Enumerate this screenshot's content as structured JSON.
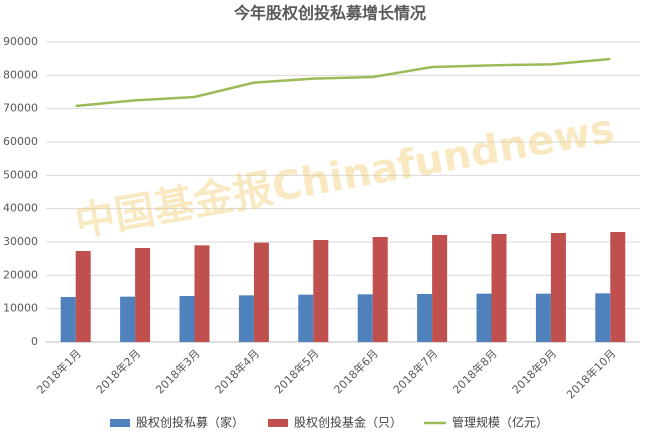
{
  "chart_data": {
    "type": "bar",
    "title": "今年股权创投私募增长情况",
    "watermark": "中国基金报Chinafundnews",
    "categories": [
      "2018年1月",
      "2018年2月",
      "2018年3月",
      "2018年4月",
      "2018年5月",
      "2018年6月",
      "2018年7月",
      "2018年8月",
      "2018年9月",
      "2018年10月"
    ],
    "series": [
      {
        "name": "股权创投私募（家）",
        "type": "bar",
        "color": "#4f81bd",
        "values": [
          13500,
          13600,
          13800,
          14000,
          14200,
          14300,
          14400,
          14500,
          14500,
          14600
        ]
      },
      {
        "name": "股权创投基金（只）",
        "type": "bar",
        "color": "#c0504d",
        "values": [
          27300,
          28200,
          29000,
          29800,
          30600,
          31500,
          32100,
          32400,
          32700,
          33000
        ]
      },
      {
        "name": "管理规模（亿元）",
        "type": "line",
        "color": "#9bbb59",
        "values": [
          70800,
          72500,
          73500,
          77800,
          79000,
          79500,
          82500,
          83000,
          83300,
          84900
        ]
      }
    ],
    "ylim": [
      0,
      90000
    ],
    "yticks": [
      0,
      10000,
      20000,
      30000,
      40000,
      50000,
      60000,
      70000,
      80000,
      90000
    ],
    "grid": true
  }
}
